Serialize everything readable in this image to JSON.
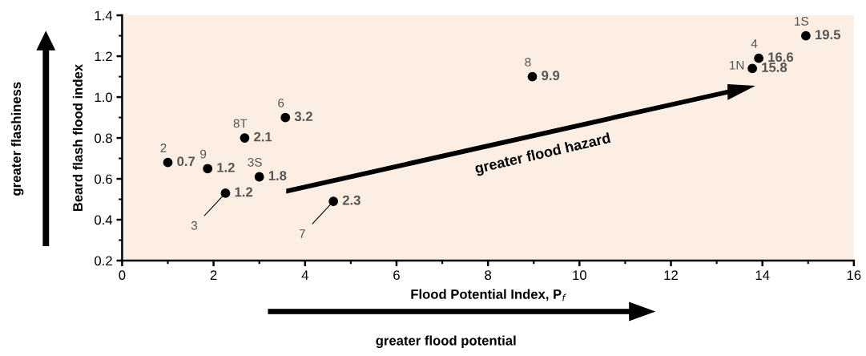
{
  "chart_data": {
    "type": "scatter",
    "xlabel": "Flood Potential Index, P$_{f}$",
    "ylabel": "Beard flash flood index",
    "x": [
      1.0,
      1.87,
      2.26,
      2.68,
      3.0,
      3.57,
      4.62,
      8.97,
      13.78,
      13.92,
      14.95
    ],
    "series": [
      {
        "color": "#000000",
        "values": [
          0.68,
          0.65,
          0.53,
          0.8,
          0.61,
          0.9,
          0.49,
          1.1,
          1.14,
          1.19,
          1.3
        ]
      }
    ],
    "marker": "circle",
    "grid": false,
    "xlim": [
      0,
      16
    ],
    "xticks": [
      0,
      2,
      4,
      6,
      8,
      10,
      12,
      14,
      16
    ],
    "ylim": [
      0.2,
      1.4
    ],
    "yticks": [
      0.2,
      0.4,
      0.6,
      0.8,
      {
        "value": 1.0,
        "label": "1.0"
      },
      1.2,
      1.4
    ],
    "annotations": [
      {
        "text": "2",
        "x": 1.0,
        "y": 0.68
      },
      {
        "text": "0.7",
        "x": 1.0,
        "y": 0.68
      },
      {
        "text": "9",
        "x": 1.87,
        "y": 0.65
      },
      {
        "text": "1.2",
        "x": 1.87,
        "y": 0.65
      },
      {
        "text": "3",
        "x": 2.26,
        "y": 0.53
      },
      {
        "text": "1.2",
        "x": 2.26,
        "y": 0.53
      },
      {
        "text": "8T",
        "x": 2.68,
        "y": 0.8
      },
      {
        "text": "2.1",
        "x": 2.68,
        "y": 0.8
      },
      {
        "text": "3S",
        "x": 3.0,
        "y": 0.61
      },
      {
        "text": "1.8",
        "x": 3.0,
        "y": 0.61
      },
      {
        "text": "6",
        "x": 3.57,
        "y": 0.9
      },
      {
        "text": "3.2",
        "x": 3.57,
        "y": 0.9
      },
      {
        "text": "7",
        "x": 4.62,
        "y": 0.49
      },
      {
        "text": "2.3",
        "x": 4.62,
        "y": 0.49
      },
      {
        "text": "8",
        "x": 8.97,
        "y": 1.1
      },
      {
        "text": "9.9",
        "x": 8.97,
        "y": 1.1
      },
      {
        "text": "1N",
        "x": 13.78,
        "y": 1.14
      },
      {
        "text": "15.8",
        "x": 13.78,
        "y": 1.14
      },
      {
        "text": "4",
        "x": 13.92,
        "y": 1.19
      },
      {
        "text": "16.6",
        "x": 13.92,
        "y": 1.19
      },
      {
        "text": "1S",
        "x": 14.95,
        "y": 1.3
      },
      {
        "text": "19.5",
        "x": 14.95,
        "y": 1.3
      },
      "greater flood hazard",
      "greater flashiness",
      "greater flood potential"
    ]
  }
}
